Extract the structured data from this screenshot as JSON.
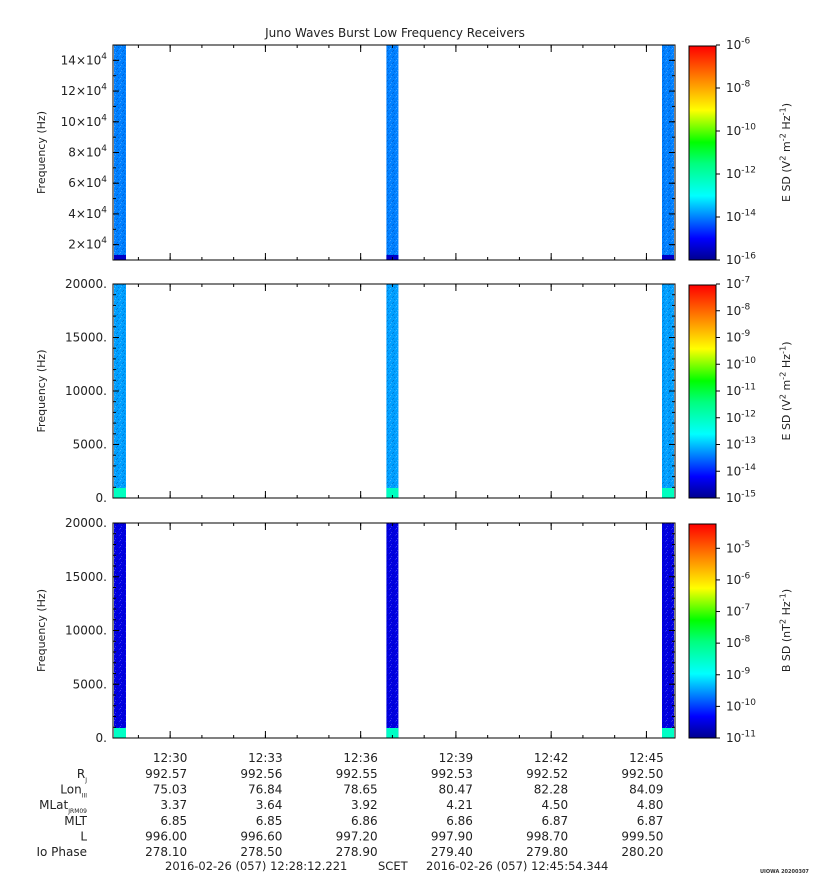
{
  "chart_data": [
    {
      "type": "heatmap",
      "title": "Juno Waves Burst Low Frequency Receivers",
      "ylabel": "Frequency (Hz)",
      "ylim": [
        10000,
        150000
      ],
      "yticks": [
        "2×10^4",
        "4×10^4",
        "6×10^4",
        "8×10^4",
        "10×10^4",
        "12×10^4",
        "14×10^4"
      ],
      "ytick_values": [
        20000,
        40000,
        60000,
        80000,
        100000,
        120000,
        140000
      ],
      "colorbar": {
        "label": "E SD (V^2 m^-2 Hz^-1)",
        "ticks": [
          "10^-6",
          "10^-8",
          "10^-10",
          "10^-12",
          "10^-14",
          "10^-16"
        ],
        "tick_exps": [
          -6,
          -8,
          -10,
          -12,
          -14,
          -16
        ],
        "range_exp": [
          -16,
          -6
        ]
      },
      "bursts": [
        {
          "time": "12:28:12",
          "level_exp": -14,
          "low_band_exp": -15.5
        },
        {
          "time": "12:37:00",
          "level_exp": -14,
          "low_band_exp": -15.5
        },
        {
          "time": "12:45:54",
          "level_exp": -14,
          "low_band_exp": -15.5
        }
      ]
    },
    {
      "type": "heatmap",
      "ylabel": "Frequency (Hz)",
      "ylim": [
        0,
        20000
      ],
      "yticks": [
        "0.",
        "5000.",
        "10000.",
        "15000.",
        "20000."
      ],
      "ytick_values": [
        0,
        5000,
        10000,
        15000,
        20000
      ],
      "colorbar": {
        "label": "E SD (V^2 m^-2 Hz^-1)",
        "ticks": [
          "10^-7",
          "10^-8",
          "10^-9",
          "10^-10",
          "10^-11",
          "10^-12",
          "10^-13",
          "10^-14",
          "10^-15"
        ],
        "tick_exps": [
          -7,
          -8,
          -9,
          -10,
          -11,
          -12,
          -13,
          -14,
          -15
        ],
        "range_exp": [
          -15,
          -7
        ]
      },
      "bursts": [
        {
          "time": "12:28:12",
          "level_exp": -13.2,
          "low_band_exp": -12
        },
        {
          "time": "12:37:00",
          "level_exp": -13.2,
          "low_band_exp": -12
        },
        {
          "time": "12:45:54",
          "level_exp": -13.2,
          "low_band_exp": -12
        }
      ]
    },
    {
      "type": "heatmap",
      "ylabel": "Frequency (Hz)",
      "ylim": [
        0,
        20000
      ],
      "yticks": [
        "0.",
        "5000.",
        "10000.",
        "15000.",
        "20000."
      ],
      "ytick_values": [
        0,
        5000,
        10000,
        15000,
        20000
      ],
      "colorbar": {
        "label": "B SD (nT^2 Hz^-1)",
        "ticks": [
          "10^-5",
          "10^-6",
          "10^-7",
          "10^-8",
          "10^-9",
          "10^-10",
          "10^-11"
        ],
        "tick_exps": [
          -5,
          -6,
          -7,
          -8,
          -9,
          -10,
          -11
        ],
        "range_exp": [
          -11,
          -4.2
        ]
      },
      "bursts": [
        {
          "time": "12:28:12",
          "level_exp": -10.5,
          "low_band_exp": -8.5
        },
        {
          "time": "12:37:00",
          "level_exp": -10.5,
          "low_band_exp": -8.5
        },
        {
          "time": "12:45:54",
          "level_exp": -10.5,
          "low_band_exp": -8.5
        }
      ]
    }
  ],
  "time_axis": {
    "start": "12:28:12",
    "end": "12:45:54",
    "ticks": [
      "12:30",
      "12:33",
      "12:36",
      "12:39",
      "12:42",
      "12:45"
    ],
    "tick_times": [
      "12:30:00",
      "12:33:00",
      "12:36:00",
      "12:39:00",
      "12:42:00",
      "12:45:00"
    ]
  },
  "ephemeris": {
    "rows": [
      {
        "label": "R",
        "sub": "J",
        "values": [
          "992.57",
          "992.56",
          "992.55",
          "992.53",
          "992.52",
          "992.50"
        ]
      },
      {
        "label": "Lon",
        "sub": "III",
        "values": [
          "75.03",
          "76.84",
          "78.65",
          "80.47",
          "82.28",
          "84.09"
        ]
      },
      {
        "label": "MLat",
        "sub": "JRM09",
        "values": [
          "3.37",
          "3.64",
          "3.92",
          "4.21",
          "4.50",
          "4.80"
        ]
      },
      {
        "label": "MLT",
        "sub": "",
        "values": [
          "6.85",
          "6.85",
          "6.86",
          "6.86",
          "6.87",
          "6.87"
        ]
      },
      {
        "label": "L",
        "sub": "",
        "values": [
          "996.00",
          "996.60",
          "997.20",
          "997.90",
          "998.70",
          "999.50"
        ]
      },
      {
        "label": "Io Phase",
        "sub": "",
        "values": [
          "278.10",
          "278.50",
          "278.90",
          "279.40",
          "279.80",
          "280.20"
        ]
      }
    ]
  },
  "footer": {
    "start_time": "2016-02-26 (057) 12:28:12.221",
    "scet_label": "SCET",
    "end_time": "2016-02-26 (057) 12:45:54.344",
    "stamp": "UIOWA 20200307"
  }
}
